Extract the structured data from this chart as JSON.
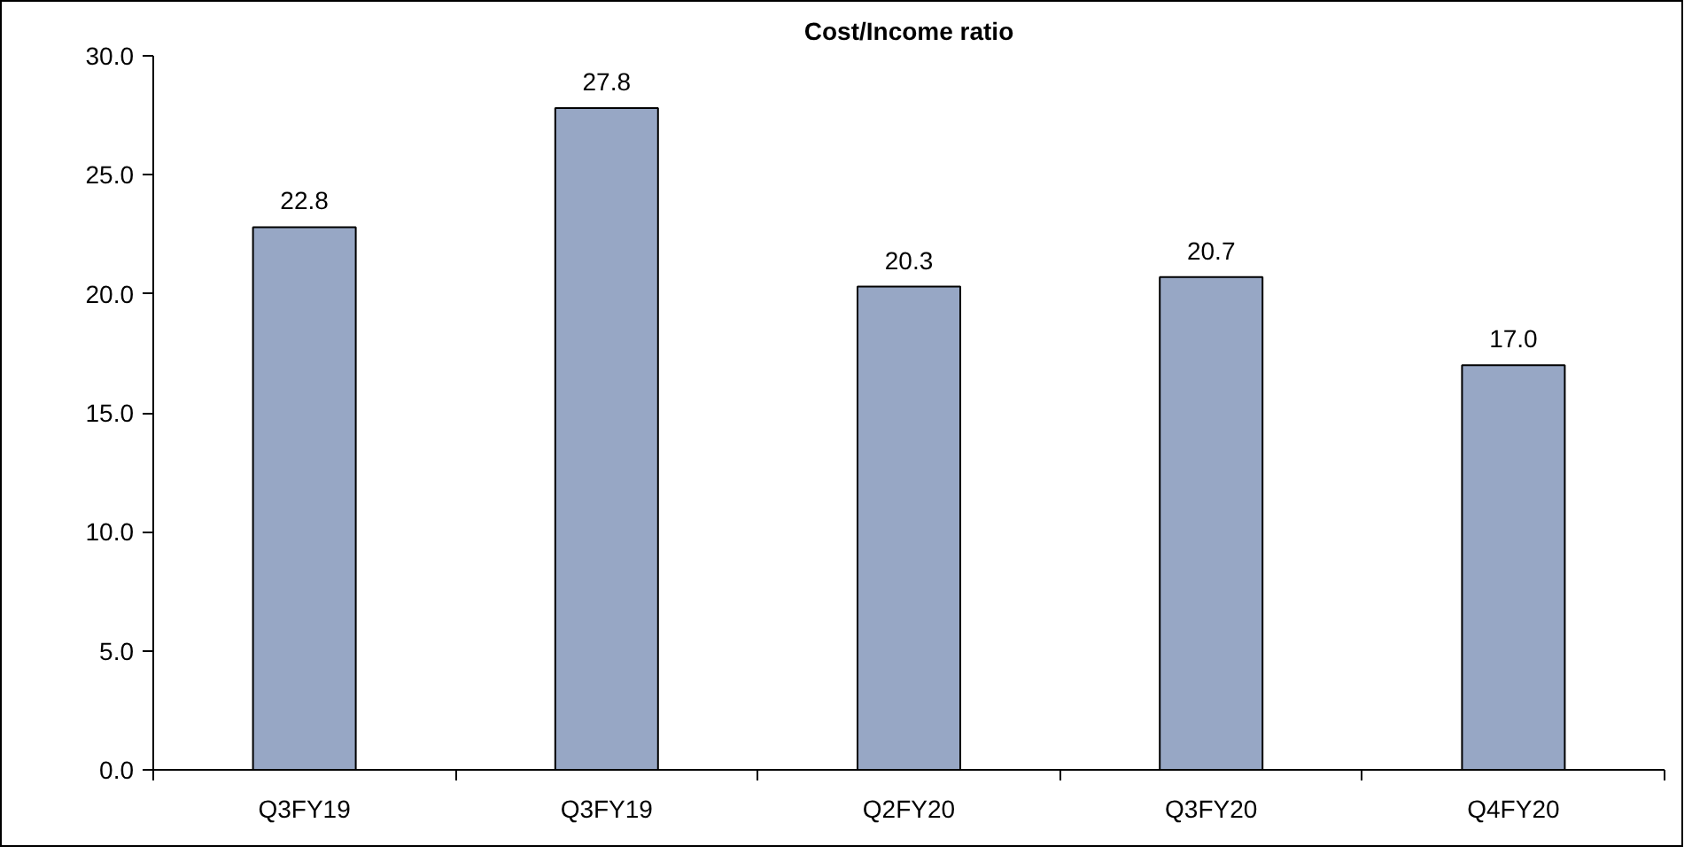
{
  "chart_data": {
    "type": "bar",
    "title": "Cost/Income ratio",
    "categories": [
      "Q3FY19",
      "Q3FY19",
      "Q2FY20",
      "Q3FY20",
      "Q4FY20"
    ],
    "values": [
      22.8,
      27.8,
      20.3,
      20.7,
      17.0
    ],
    "color": "#97a7c5",
    "ylim": [
      0,
      30
    ],
    "yticks": [
      {
        "value": 0,
        "label": "0.0"
      },
      {
        "value": 5,
        "label": "5.0"
      },
      {
        "value": 10,
        "label": "10.0"
      },
      {
        "value": 15,
        "label": "15.0"
      },
      {
        "value": 20,
        "label": "20.0"
      },
      {
        "value": 25,
        "label": "25.0"
      },
      {
        "value": 30,
        "label": "30.0"
      }
    ],
    "value_labels": [
      "22.8",
      "27.8",
      "20.3",
      "20.7",
      "17.0"
    ],
    "grid": false
  }
}
